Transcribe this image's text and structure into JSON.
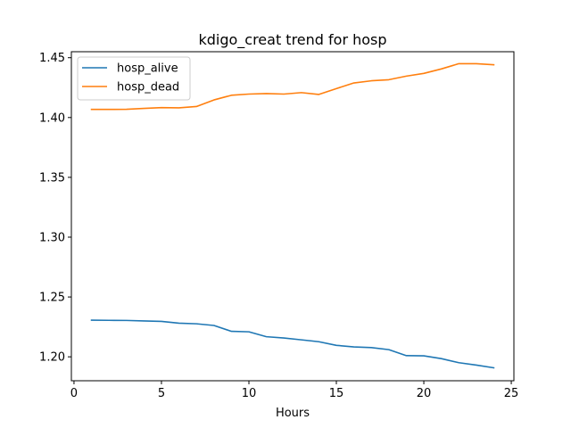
{
  "chart_data": {
    "type": "line",
    "title": "kdigo_creat trend for hosp",
    "xlabel": "Hours",
    "ylabel": "",
    "xlim": [
      -0.15,
      25.15
    ],
    "ylim": [
      1.18,
      1.455
    ],
    "xticks": [
      0,
      5,
      10,
      15,
      20,
      25
    ],
    "yticks": [
      1.2,
      1.25,
      1.3,
      1.35,
      1.4,
      1.45
    ],
    "ytick_labels": [
      "1.20",
      "1.25",
      "1.30",
      "1.35",
      "1.40",
      "1.45"
    ],
    "grid": false,
    "legend_position": "top-left",
    "x": [
      1,
      2,
      3,
      4,
      5,
      6,
      7,
      8,
      9,
      10,
      11,
      12,
      13,
      14,
      15,
      16,
      17,
      18,
      19,
      20,
      21,
      22,
      23,
      24
    ],
    "series": [
      {
        "name": "hosp_alive",
        "color": "#1f77b4",
        "values": [
          1.2306,
          1.2305,
          1.2304,
          1.23,
          1.2296,
          1.2281,
          1.2276,
          1.2262,
          1.2213,
          1.2209,
          1.2168,
          1.2157,
          1.2142,
          1.2126,
          1.2096,
          1.2083,
          1.2077,
          1.206,
          1.201,
          1.2008,
          1.1985,
          1.1951,
          1.1931,
          1.1908
        ]
      },
      {
        "name": "hosp_dead",
        "color": "#ff7f0e",
        "values": [
          1.4068,
          1.4068,
          1.4069,
          1.4076,
          1.4083,
          1.4081,
          1.4092,
          1.4147,
          1.4186,
          1.4196,
          1.42,
          1.4196,
          1.4208,
          1.4193,
          1.4242,
          1.4289,
          1.4307,
          1.4316,
          1.4346,
          1.4369,
          1.4406,
          1.445,
          1.445,
          1.4441
        ]
      }
    ]
  }
}
